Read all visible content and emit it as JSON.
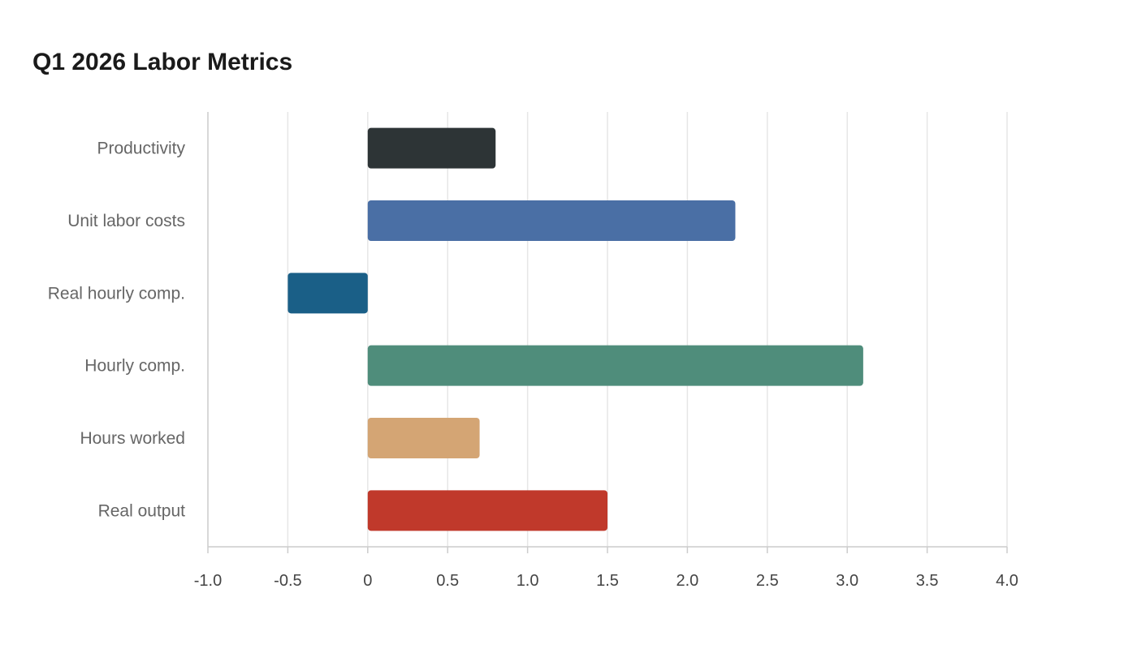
{
  "colors": {
    "grid": "#e6e6e6",
    "axis": "#cccccc",
    "category_text": "#666666",
    "tick_text": "#444444"
  },
  "chart_data": {
    "type": "bar",
    "orientation": "horizontal",
    "title": "Q1 2026 Labor Metrics",
    "xlabel": "",
    "ylabel": "",
    "xlim": [
      -1.0,
      4.0
    ],
    "x_ticks": [
      -1.0,
      -0.5,
      0,
      0.5,
      1.0,
      1.5,
      2.0,
      2.5,
      3.0,
      3.5,
      4.0
    ],
    "x_tick_labels": [
      "-1.0",
      "-0.5",
      "0",
      "0.5",
      "1.0",
      "1.5",
      "2.0",
      "2.5",
      "3.0",
      "3.5",
      "4.0"
    ],
    "grid": true,
    "legend": false,
    "categories": [
      "Productivity",
      "Unit labor costs",
      "Real hourly comp.",
      "Hourly comp.",
      "Hours worked",
      "Real output"
    ],
    "values": [
      0.8,
      2.3,
      -0.5,
      3.1,
      0.7,
      1.5
    ],
    "bar_colors": [
      "#2d3436",
      "#4a6fa5",
      "#1a5f87",
      "#4f8d7b",
      "#d4a574",
      "#c0392b"
    ]
  }
}
